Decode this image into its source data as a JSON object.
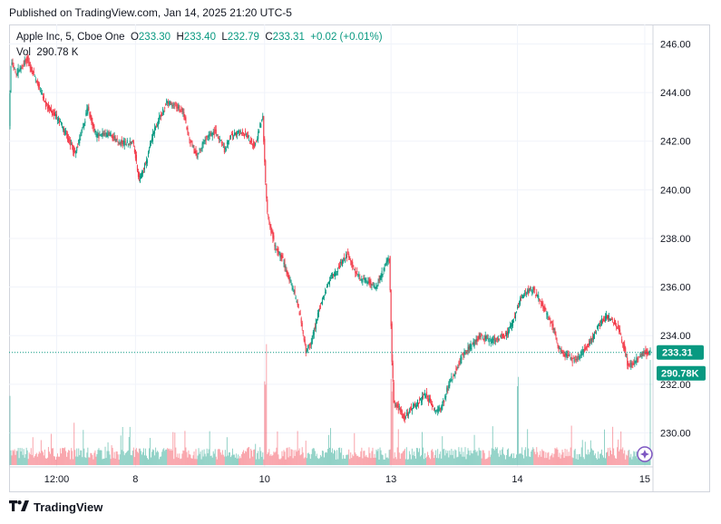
{
  "header": {
    "published": "Published on TradingView.com, Jan 14, 2025 21:20 UTC-5"
  },
  "legend": {
    "symbol": "Apple Inc, 5, Cboe One",
    "open_label": "O",
    "open": "233.30",
    "high_label": "H",
    "high": "233.40",
    "low_label": "L",
    "low": "232.79",
    "close_label": "C",
    "close": "233.31",
    "change": "+0.02 (+0.01%)",
    "vol_label": "Vol",
    "vol": "290.78 K"
  },
  "footer": {
    "brand": "TradingView",
    "logo": "tradingview-logo-icon"
  },
  "colors": {
    "up": "#089981",
    "down": "#f23645",
    "grid": "#f0f3fa",
    "axis_text": "#131722"
  },
  "chart_data": {
    "type": "candlestick",
    "title": "Apple Inc, 5, Cboe One",
    "ylim": [
      228.6,
      246.8
    ],
    "y_ticks": [
      "246.00",
      "244.00",
      "242.00",
      "240.00",
      "238.00",
      "236.00",
      "234.00",
      "232.00",
      "230.00"
    ],
    "y_tick_values": [
      246,
      244,
      242,
      240,
      238,
      236,
      234,
      232,
      230
    ],
    "x_ticks": [
      "12:00",
      "8",
      "10",
      "13",
      "14",
      "15"
    ],
    "x_tick_bars": [
      51,
      137,
      278,
      416,
      554,
      693
    ],
    "bar_count": 700,
    "last_price": "233.31",
    "last_price_value": 233.31,
    "last_volume": "290.78K",
    "anchors": [
      [
        0,
        242.7
      ],
      [
        2,
        245.2
      ],
      [
        8,
        244.8
      ],
      [
        12,
        245.0
      ],
      [
        20,
        245.4
      ],
      [
        28,
        244.6
      ],
      [
        40,
        243.5
      ],
      [
        55,
        242.8
      ],
      [
        62,
        242.3
      ],
      [
        72,
        241.5
      ],
      [
        80,
        242.5
      ],
      [
        86,
        243.4
      ],
      [
        90,
        242.8
      ],
      [
        95,
        242.2
      ],
      [
        110,
        242.3
      ],
      [
        120,
        241.9
      ],
      [
        135,
        242.0
      ],
      [
        142,
        240.4
      ],
      [
        150,
        241.2
      ],
      [
        158,
        242.4
      ],
      [
        165,
        243.0
      ],
      [
        172,
        243.6
      ],
      [
        182,
        243.5
      ],
      [
        190,
        243.2
      ],
      [
        197,
        242.0
      ],
      [
        205,
        241.4
      ],
      [
        215,
        242.1
      ],
      [
        225,
        242.4
      ],
      [
        235,
        241.6
      ],
      [
        242,
        242.2
      ],
      [
        250,
        242.4
      ],
      [
        258,
        242.3
      ],
      [
        268,
        241.8
      ],
      [
        277,
        243.0
      ],
      [
        280,
        240.2
      ],
      [
        282,
        239.0
      ],
      [
        290,
        237.7
      ],
      [
        300,
        237.0
      ],
      [
        310,
        235.9
      ],
      [
        318,
        234.8
      ],
      [
        324,
        233.3
      ],
      [
        330,
        233.8
      ],
      [
        338,
        235.0
      ],
      [
        344,
        235.7
      ],
      [
        350,
        236.3
      ],
      [
        360,
        236.8
      ],
      [
        370,
        237.4
      ],
      [
        378,
        236.6
      ],
      [
        385,
        236.3
      ],
      [
        393,
        236.2
      ],
      [
        400,
        236.0
      ],
      [
        410,
        236.8
      ],
      [
        415,
        237.2
      ],
      [
        418,
        233.0
      ],
      [
        420,
        231.3
      ],
      [
        426,
        231.0
      ],
      [
        432,
        230.6
      ],
      [
        440,
        231.1
      ],
      [
        448,
        231.3
      ],
      [
        455,
        231.6
      ],
      [
        465,
        230.9
      ],
      [
        472,
        231.0
      ],
      [
        480,
        232.0
      ],
      [
        488,
        232.6
      ],
      [
        495,
        233.2
      ],
      [
        505,
        233.6
      ],
      [
        515,
        234.0
      ],
      [
        525,
        233.8
      ],
      [
        535,
        233.9
      ],
      [
        545,
        234.1
      ],
      [
        552,
        234.8
      ],
      [
        558,
        235.5
      ],
      [
        565,
        235.8
      ],
      [
        572,
        235.9
      ],
      [
        580,
        235.4
      ],
      [
        588,
        234.8
      ],
      [
        595,
        234.2
      ],
      [
        600,
        233.5
      ],
      [
        608,
        233.2
      ],
      [
        615,
        233.0
      ],
      [
        622,
        233.1
      ],
      [
        630,
        233.5
      ],
      [
        638,
        234.0
      ],
      [
        645,
        234.5
      ],
      [
        652,
        234.8
      ],
      [
        660,
        234.6
      ],
      [
        666,
        234.2
      ],
      [
        672,
        233.4
      ],
      [
        676,
        232.7
      ],
      [
        682,
        232.9
      ],
      [
        688,
        233.1
      ],
      [
        693,
        233.3
      ],
      [
        699,
        233.31
      ]
    ]
  }
}
